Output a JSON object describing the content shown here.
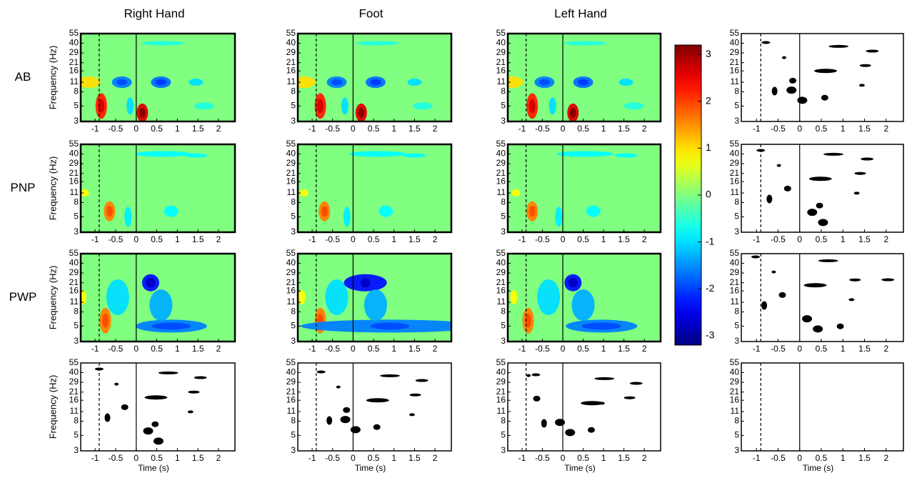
{
  "chart_data": {
    "type": "heatmap-grid",
    "columns": [
      "Right Hand",
      "Foot",
      "Left Hand"
    ],
    "rows": [
      "AB",
      "PNP",
      "PWP"
    ],
    "ylabel": "Frequency (Hz)",
    "xlabel": "Time (s)",
    "xlim": [
      -1.35,
      2.4
    ],
    "xticks": [
      -1,
      -0.5,
      0,
      0.5,
      1,
      1.5,
      2
    ],
    "ylim": [
      3,
      55
    ],
    "ylog": true,
    "yticks": [
      3,
      5,
      8,
      11,
      16,
      21,
      29,
      40,
      55
    ],
    "markers": [
      -0.9,
      0
    ],
    "colorbar": {
      "clim": [
        -3.2,
        3.2
      ],
      "ticks": [
        3,
        2,
        1,
        0,
        -1,
        -2,
        -3
      ],
      "colormap": "jet"
    }
  }
}
